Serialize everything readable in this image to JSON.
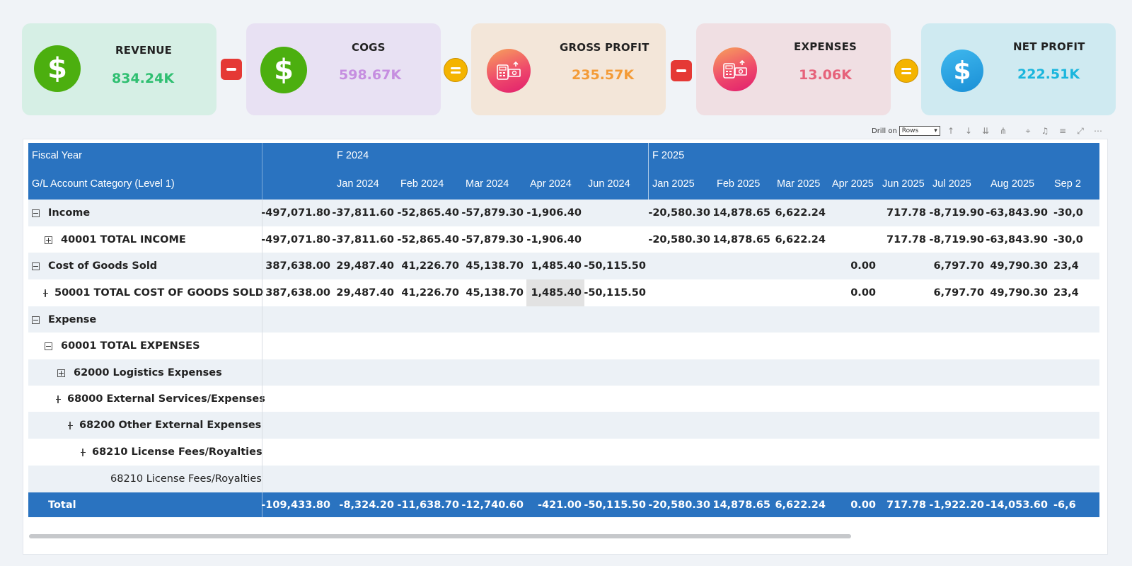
{
  "kpis": [
    {
      "title": "REVENUE",
      "value": "834.24K",
      "icon": "dollar-icon"
    },
    {
      "title": "COGS",
      "value": "598.67K",
      "icon": "dollar-icon"
    },
    {
      "title": "GROSS PROFIT",
      "value": "235.57K",
      "icon": "calculator-money-icon"
    },
    {
      "title": "EXPENSES",
      "value": "13.06K",
      "icon": "calculator-money-icon"
    },
    {
      "title": "NET PROFIT",
      "value": "222.51K",
      "icon": "dollar-icon"
    }
  ],
  "colors": {
    "revenue_bg": "#d6efe5",
    "revenue_value": "#2fbf71",
    "revenue_icon": "#4caf0f",
    "cogs_bg": "#e8e1f3",
    "cogs_value": "#c68ee0",
    "gross_bg": "#f3e6d9",
    "gross_value": "#f39b37",
    "expenses_bg": "#f0dfe3",
    "expenses_value": "#e6627a",
    "net_bg": "#cfeaf1",
    "net_value": "#1ab6dd",
    "header": "#2a73c0"
  },
  "operators": [
    "minus",
    "equals",
    "minus",
    "equals"
  ],
  "toolbar": {
    "drill_label": "Drill on",
    "drill_value": "Rows"
  },
  "table": {
    "fiscal_year_label": "Fiscal Year",
    "row_header_label": "G/L Account Category (Level 1)",
    "year_groups": [
      "F 2024",
      "F 2025"
    ],
    "months": [
      "Jan 2024",
      "Feb 2024",
      "Mar 2024",
      "Apr 2024",
      "Jun 2024",
      "Jan 2025",
      "Feb 2025",
      "Mar 2025",
      "Apr 2025",
      "Jun 2025",
      "Jul 2025",
      "Aug 2025",
      "Sep 2"
    ],
    "rows": [
      {
        "label": "Income",
        "toggle": "minus",
        "level": 0,
        "values": [
          "-497,071.80",
          "-37,811.60",
          "-52,865.40",
          "-57,879.30",
          "-1,906.40",
          "",
          "-20,580.30",
          "14,878.65",
          "6,622.24",
          "",
          "717.78",
          "-8,719.90",
          "-63,843.90",
          "-30,0"
        ]
      },
      {
        "label": "40001 TOTAL INCOME",
        "toggle": "plus",
        "level": 1,
        "values": [
          "-497,071.80",
          "-37,811.60",
          "-52,865.40",
          "-57,879.30",
          "-1,906.40",
          "",
          "-20,580.30",
          "14,878.65",
          "6,622.24",
          "",
          "717.78",
          "-8,719.90",
          "-63,843.90",
          "-30,0"
        ]
      },
      {
        "label": "Cost of Goods Sold",
        "toggle": "minus",
        "level": 0,
        "values": [
          "387,638.00",
          "29,487.40",
          "41,226.70",
          "45,138.70",
          "1,485.40",
          "-50,115.50",
          "",
          "",
          "",
          "0.00",
          "",
          "6,797.70",
          "49,790.30",
          "23,4"
        ]
      },
      {
        "label": "50001 TOTAL COST OF GOODS SOLD",
        "toggle": "plus",
        "level": 1,
        "values": [
          "387,638.00",
          "29,487.40",
          "41,226.70",
          "45,138.70",
          "1,485.40",
          "-50,115.50",
          "",
          "",
          "",
          "0.00",
          "",
          "6,797.70",
          "49,790.30",
          "23,4"
        ]
      },
      {
        "label": "Expense",
        "toggle": "minus",
        "level": 0,
        "values": []
      },
      {
        "label": "60001 TOTAL EXPENSES",
        "toggle": "minus",
        "level": 1,
        "values": []
      },
      {
        "label": "62000 Logistics Expenses",
        "toggle": "plus",
        "level": 2,
        "values": []
      },
      {
        "label": "68000 External Services/Expenses",
        "toggle": "minus",
        "level": 2,
        "values": []
      },
      {
        "label": "68200 Other External Expenses",
        "toggle": "minus",
        "level": 3,
        "values": []
      },
      {
        "label": "68210 License Fees/Royalties",
        "toggle": "minus",
        "level": 4,
        "values": []
      },
      {
        "label": "68210 License Fees/Royalties",
        "toggle": "none",
        "level": 5,
        "values": []
      }
    ],
    "total": {
      "label": "Total",
      "values": [
        "-109,433.80",
        "-8,324.20",
        "-11,638.70",
        "-12,740.60",
        "-421.00",
        "-50,115.50",
        "-20,580.30",
        "14,878.65",
        "6,622.24",
        "0.00",
        "717.78",
        "-1,922.20",
        "-14,053.60",
        "-6,6"
      ]
    }
  }
}
